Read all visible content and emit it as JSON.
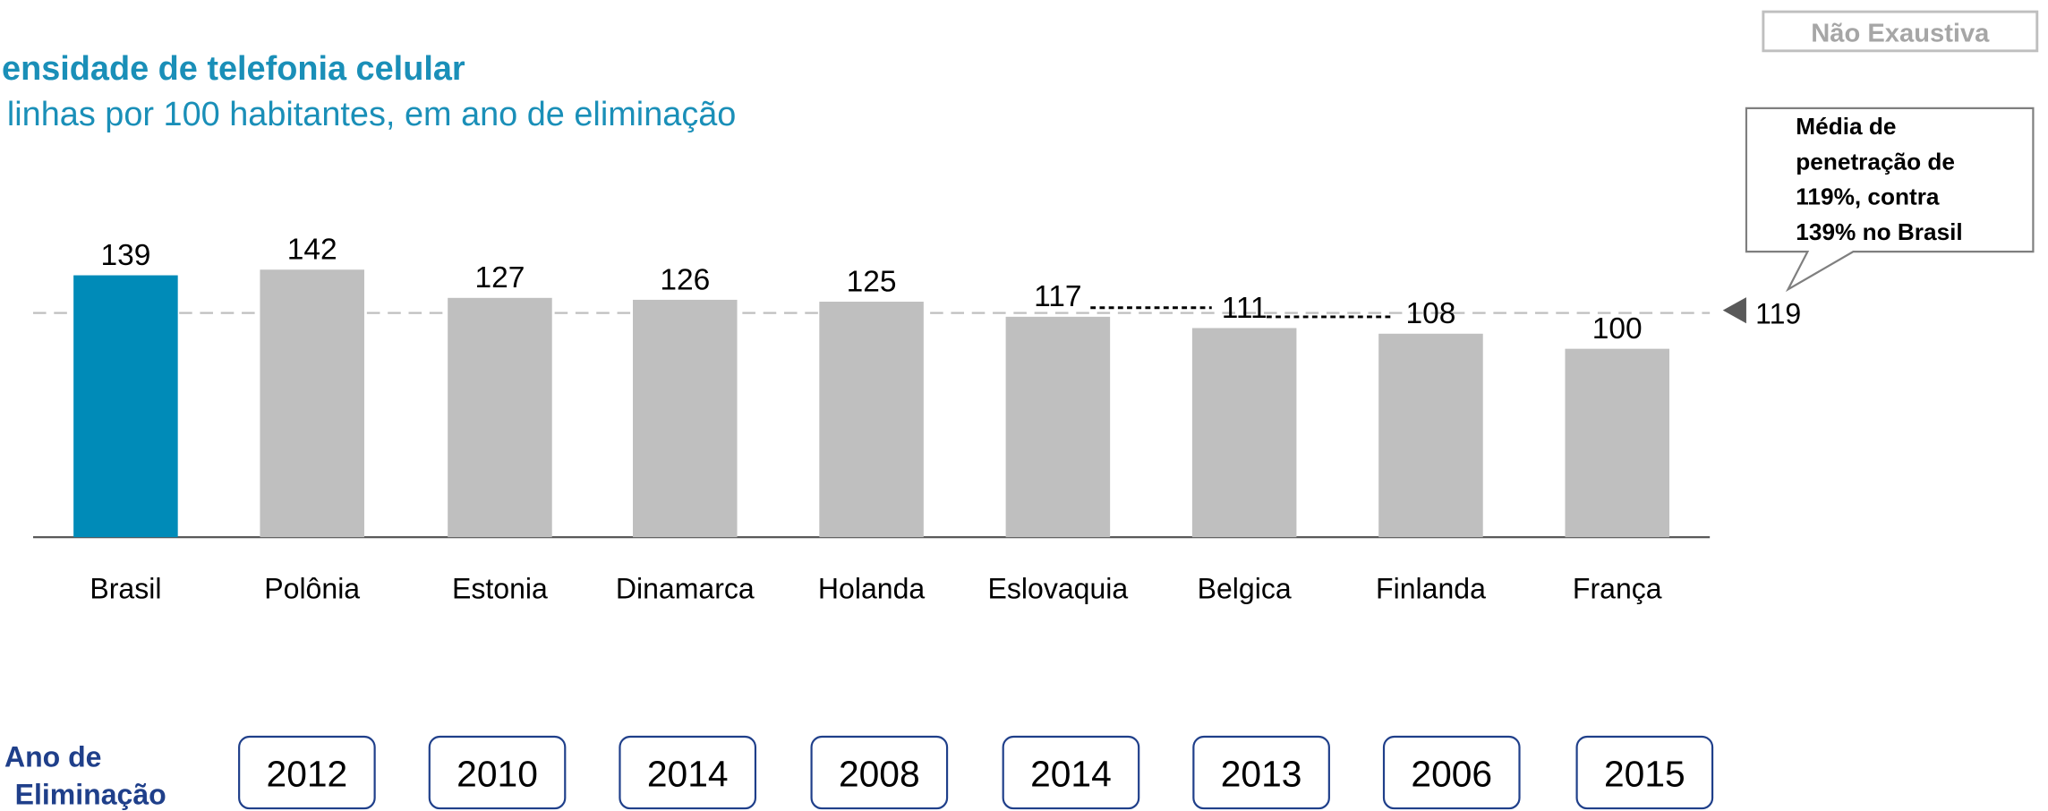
{
  "chart_data": {
    "type": "bar",
    "title": "ensidade de telefonia celular",
    "subtitle": "linhas por 100 habitantes, em ano de eliminação",
    "badge": "Não Exaustiva",
    "callout": [
      "Média de",
      "penetração de",
      "119%, contra",
      "139% no Brasil"
    ],
    "categories": [
      "Brasil",
      "Polônia",
      "Estonia",
      "Dinamarca",
      "Holanda",
      "Eslovaquia",
      "Belgica",
      "Finlanda",
      "França"
    ],
    "values": [
      139,
      142,
      127,
      126,
      125,
      117,
      111,
      108,
      100
    ],
    "colors": [
      "#008bb8",
      "#bfbfbf",
      "#bfbfbf",
      "#bfbfbf",
      "#bfbfbf",
      "#bfbfbf",
      "#bfbfbf",
      "#bfbfbf",
      "#bfbfbf"
    ],
    "average": 119,
    "years_label": [
      "Ano de",
      "Eliminação"
    ],
    "years": [
      null,
      2012,
      2010,
      2014,
      2008,
      2014,
      2013,
      2006,
      2015
    ]
  }
}
